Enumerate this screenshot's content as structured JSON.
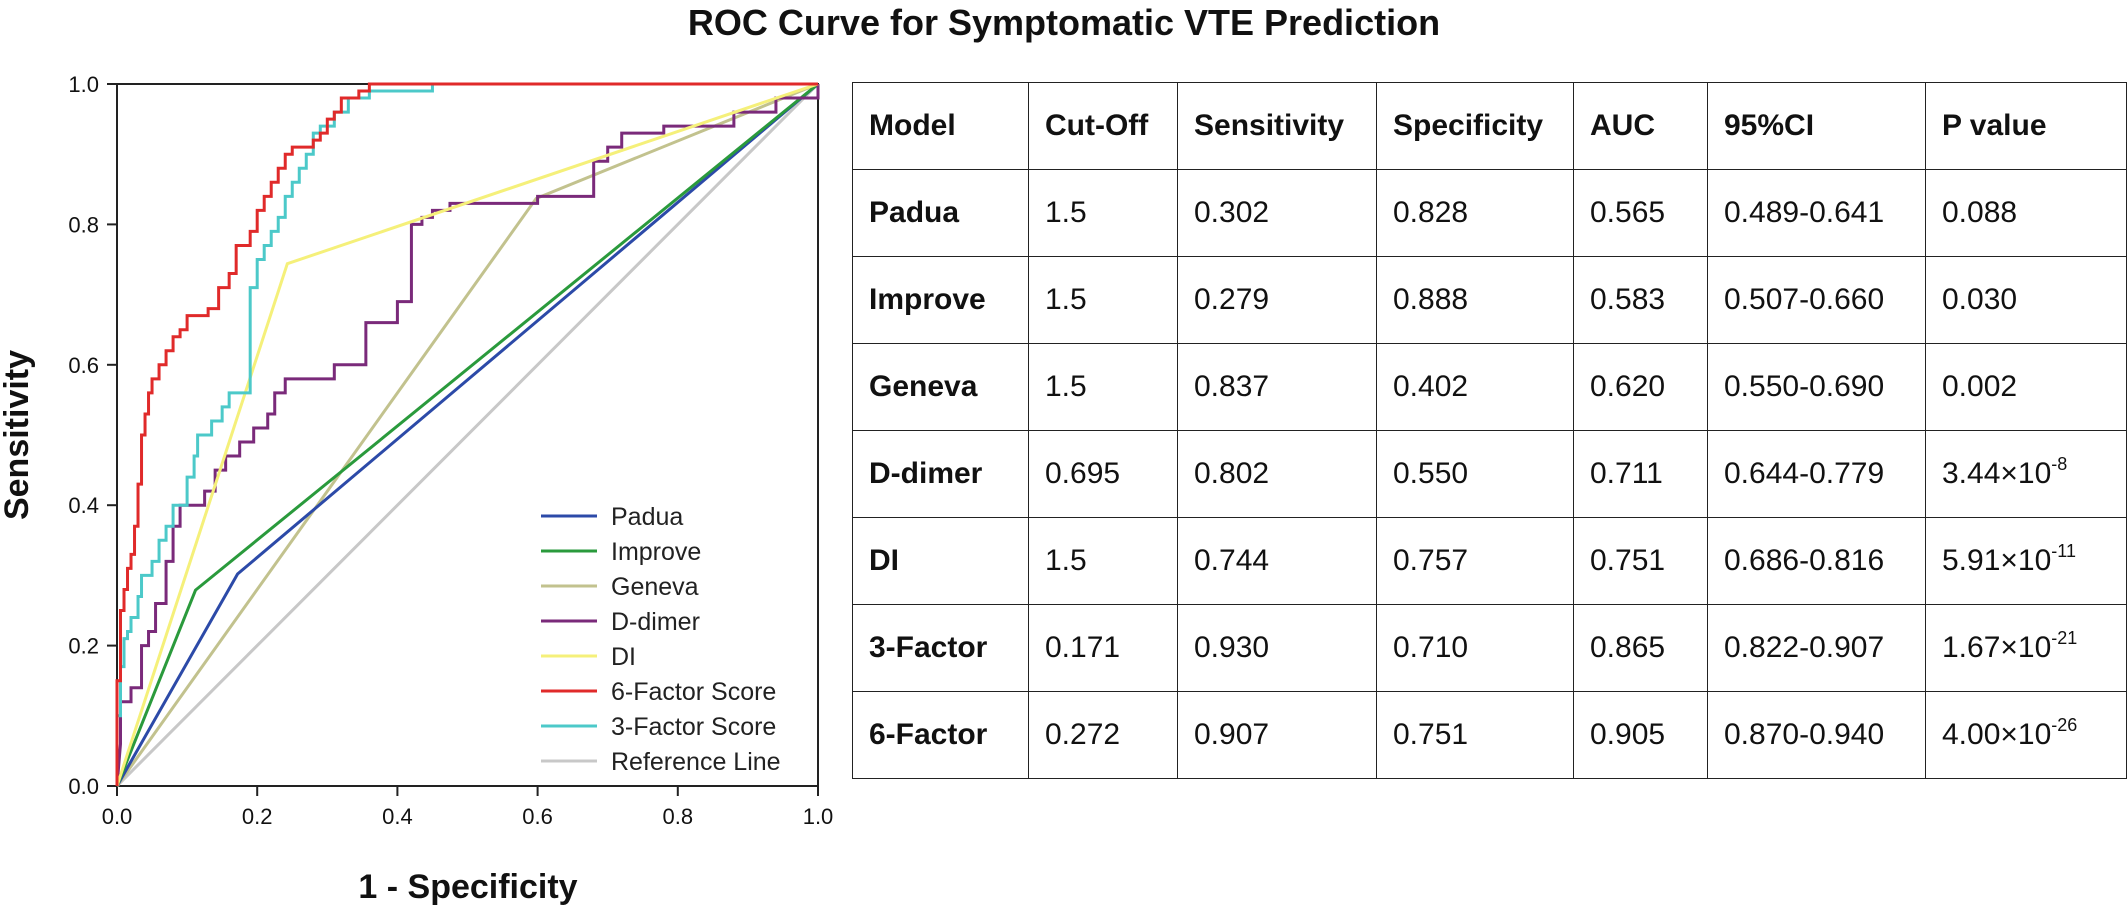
{
  "chart_data": [
    {
      "type": "line",
      "title": "ROC Curve for Symptomatic VTE Prediction",
      "xlabel": "1 - Specificity",
      "ylabel": "Sensitivity",
      "xlim": [
        0,
        1
      ],
      "ylim": [
        0,
        1
      ],
      "xticks": [
        "0.0",
        "0.2",
        "0.4",
        "0.6",
        "0.8",
        "1.0"
      ],
      "yticks": [
        "0.0",
        "0.2",
        "0.4",
        "0.6",
        "0.8",
        "1.0"
      ],
      "grid": false,
      "legend_position": "bottom-right",
      "series": [
        {
          "name": "Padua",
          "color": "#2c4aa8",
          "points": [
            [
              0,
              0
            ],
            [
              0.172,
              0.302
            ],
            [
              1,
              1
            ]
          ]
        },
        {
          "name": "Improve",
          "color": "#2a9a3c",
          "points": [
            [
              0,
              0
            ],
            [
              0.112,
              0.279
            ],
            [
              1,
              1
            ]
          ]
        },
        {
          "name": "Geneva",
          "color": "#c2c28e",
          "points": [
            [
              0,
              0
            ],
            [
              0.598,
              0.837
            ],
            [
              1,
              1
            ]
          ]
        },
        {
          "name": "D-dimer",
          "color": "#7a2a7a",
          "points": [
            [
              0,
              0
            ],
            [
              0.005,
              0.06
            ],
            [
              0.005,
              0.12
            ],
            [
              0.02,
              0.12
            ],
            [
              0.02,
              0.14
            ],
            [
              0.035,
              0.14
            ],
            [
              0.035,
              0.2
            ],
            [
              0.045,
              0.2
            ],
            [
              0.045,
              0.22
            ],
            [
              0.055,
              0.22
            ],
            [
              0.055,
              0.26
            ],
            [
              0.07,
              0.26
            ],
            [
              0.07,
              0.32
            ],
            [
              0.08,
              0.32
            ],
            [
              0.08,
              0.37
            ],
            [
              0.09,
              0.37
            ],
            [
              0.09,
              0.4
            ],
            [
              0.125,
              0.4
            ],
            [
              0.125,
              0.42
            ],
            [
              0.14,
              0.42
            ],
            [
              0.14,
              0.45
            ],
            [
              0.155,
              0.45
            ],
            [
              0.155,
              0.47
            ],
            [
              0.175,
              0.47
            ],
            [
              0.175,
              0.49
            ],
            [
              0.195,
              0.49
            ],
            [
              0.195,
              0.51
            ],
            [
              0.215,
              0.51
            ],
            [
              0.215,
              0.53
            ],
            [
              0.225,
              0.53
            ],
            [
              0.225,
              0.56
            ],
            [
              0.24,
              0.56
            ],
            [
              0.24,
              0.58
            ],
            [
              0.31,
              0.58
            ],
            [
              0.31,
              0.6
            ],
            [
              0.355,
              0.6
            ],
            [
              0.355,
              0.66
            ],
            [
              0.4,
              0.66
            ],
            [
              0.4,
              0.69
            ],
            [
              0.42,
              0.69
            ],
            [
              0.42,
              0.8
            ],
            [
              0.435,
              0.8
            ],
            [
              0.435,
              0.81
            ],
            [
              0.45,
              0.81
            ],
            [
              0.45,
              0.82
            ],
            [
              0.475,
              0.82
            ],
            [
              0.475,
              0.83
            ],
            [
              0.6,
              0.83
            ],
            [
              0.6,
              0.84
            ],
            [
              0.68,
              0.84
            ],
            [
              0.68,
              0.86
            ],
            [
              0.68,
              0.89
            ],
            [
              0.7,
              0.89
            ],
            [
              0.7,
              0.91
            ],
            [
              0.72,
              0.91
            ],
            [
              0.72,
              0.93
            ],
            [
              0.78,
              0.93
            ],
            [
              0.78,
              0.94
            ],
            [
              0.88,
              0.94
            ],
            [
              0.88,
              0.96
            ],
            [
              0.94,
              0.96
            ],
            [
              0.94,
              0.98
            ],
            [
              1,
              0.98
            ],
            [
              1,
              1
            ]
          ]
        },
        {
          "name": "DI",
          "color": "#f5f07a",
          "points": [
            [
              0,
              0
            ],
            [
              0.243,
              0.744
            ],
            [
              1,
              1
            ]
          ]
        },
        {
          "name": "6-Factor Score",
          "color": "#e02a2a",
          "points": [
            [
              0,
              0
            ],
            [
              0,
              0.15
            ],
            [
              0.005,
              0.15
            ],
            [
              0.005,
              0.25
            ],
            [
              0.01,
              0.25
            ],
            [
              0.01,
              0.28
            ],
            [
              0.015,
              0.28
            ],
            [
              0.015,
              0.31
            ],
            [
              0.02,
              0.31
            ],
            [
              0.02,
              0.33
            ],
            [
              0.025,
              0.33
            ],
            [
              0.025,
              0.37
            ],
            [
              0.03,
              0.37
            ],
            [
              0.03,
              0.43
            ],
            [
              0.035,
              0.43
            ],
            [
              0.035,
              0.5
            ],
            [
              0.04,
              0.5
            ],
            [
              0.04,
              0.53
            ],
            [
              0.045,
              0.53
            ],
            [
              0.045,
              0.56
            ],
            [
              0.05,
              0.56
            ],
            [
              0.05,
              0.58
            ],
            [
              0.06,
              0.58
            ],
            [
              0.06,
              0.6
            ],
            [
              0.07,
              0.6
            ],
            [
              0.07,
              0.62
            ],
            [
              0.08,
              0.62
            ],
            [
              0.08,
              0.64
            ],
            [
              0.09,
              0.64
            ],
            [
              0.09,
              0.65
            ],
            [
              0.1,
              0.65
            ],
            [
              0.1,
              0.67
            ],
            [
              0.13,
              0.67
            ],
            [
              0.13,
              0.68
            ],
            [
              0.145,
              0.68
            ],
            [
              0.145,
              0.71
            ],
            [
              0.16,
              0.71
            ],
            [
              0.16,
              0.73
            ],
            [
              0.17,
              0.73
            ],
            [
              0.17,
              0.77
            ],
            [
              0.19,
              0.77
            ],
            [
              0.19,
              0.79
            ],
            [
              0.2,
              0.79
            ],
            [
              0.2,
              0.82
            ],
            [
              0.21,
              0.82
            ],
            [
              0.21,
              0.84
            ],
            [
              0.22,
              0.84
            ],
            [
              0.22,
              0.86
            ],
            [
              0.23,
              0.86
            ],
            [
              0.23,
              0.88
            ],
            [
              0.24,
              0.88
            ],
            [
              0.24,
              0.9
            ],
            [
              0.25,
              0.9
            ],
            [
              0.25,
              0.91
            ],
            [
              0.28,
              0.91
            ],
            [
              0.28,
              0.92
            ],
            [
              0.29,
              0.92
            ],
            [
              0.29,
              0.93
            ],
            [
              0.3,
              0.93
            ],
            [
              0.3,
              0.95
            ],
            [
              0.31,
              0.95
            ],
            [
              0.31,
              0.96
            ],
            [
              0.32,
              0.96
            ],
            [
              0.32,
              0.98
            ],
            [
              0.345,
              0.98
            ],
            [
              0.345,
              0.99
            ],
            [
              0.36,
              0.99
            ],
            [
              0.36,
              1
            ],
            [
              1,
              1
            ]
          ]
        },
        {
          "name": "3-Factor Score",
          "color": "#4cc9c9",
          "points": [
            [
              0,
              0
            ],
            [
              0,
              0.1
            ],
            [
              0.005,
              0.1
            ],
            [
              0.005,
              0.17
            ],
            [
              0.01,
              0.17
            ],
            [
              0.01,
              0.21
            ],
            [
              0.015,
              0.21
            ],
            [
              0.015,
              0.22
            ],
            [
              0.02,
              0.22
            ],
            [
              0.02,
              0.24
            ],
            [
              0.03,
              0.24
            ],
            [
              0.03,
              0.27
            ],
            [
              0.035,
              0.27
            ],
            [
              0.035,
              0.3
            ],
            [
              0.05,
              0.3
            ],
            [
              0.05,
              0.32
            ],
            [
              0.06,
              0.32
            ],
            [
              0.06,
              0.35
            ],
            [
              0.07,
              0.35
            ],
            [
              0.07,
              0.37
            ],
            [
              0.08,
              0.37
            ],
            [
              0.08,
              0.4
            ],
            [
              0.1,
              0.4
            ],
            [
              0.1,
              0.44
            ],
            [
              0.11,
              0.44
            ],
            [
              0.11,
              0.47
            ],
            [
              0.115,
              0.47
            ],
            [
              0.115,
              0.5
            ],
            [
              0.135,
              0.5
            ],
            [
              0.135,
              0.52
            ],
            [
              0.15,
              0.52
            ],
            [
              0.15,
              0.54
            ],
            [
              0.16,
              0.54
            ],
            [
              0.16,
              0.56
            ],
            [
              0.19,
              0.56
            ],
            [
              0.19,
              0.71
            ],
            [
              0.2,
              0.71
            ],
            [
              0.2,
              0.75
            ],
            [
              0.21,
              0.75
            ],
            [
              0.21,
              0.77
            ],
            [
              0.22,
              0.77
            ],
            [
              0.22,
              0.79
            ],
            [
              0.23,
              0.79
            ],
            [
              0.23,
              0.81
            ],
            [
              0.24,
              0.81
            ],
            [
              0.24,
              0.84
            ],
            [
              0.25,
              0.84
            ],
            [
              0.25,
              0.86
            ],
            [
              0.26,
              0.86
            ],
            [
              0.26,
              0.88
            ],
            [
              0.27,
              0.88
            ],
            [
              0.27,
              0.9
            ],
            [
              0.28,
              0.9
            ],
            [
              0.28,
              0.93
            ],
            [
              0.29,
              0.93
            ],
            [
              0.29,
              0.94
            ],
            [
              0.31,
              0.94
            ],
            [
              0.31,
              0.96
            ],
            [
              0.33,
              0.96
            ],
            [
              0.33,
              0.98
            ],
            [
              0.36,
              0.98
            ],
            [
              0.36,
              0.99
            ],
            [
              0.45,
              0.99
            ],
            [
              0.45,
              1
            ],
            [
              1,
              1
            ]
          ]
        },
        {
          "name": "Reference Line",
          "color": "#c8c8c8",
          "points": [
            [
              0,
              0
            ],
            [
              1,
              1
            ]
          ]
        }
      ]
    },
    {
      "type": "table",
      "headers": [
        "Model",
        "Cut-Off",
        "Sensitivity",
        "Specificity",
        "AUC",
        "95%CI",
        "P value"
      ],
      "rows": [
        {
          "model": "Padua",
          "cutoff": "1.5",
          "sensitivity": "0.302",
          "specificity": "0.828",
          "auc": "0.565",
          "ci": "0.489-0.641",
          "p": "0.088",
          "p_exp": ""
        },
        {
          "model": "Improve",
          "cutoff": "1.5",
          "sensitivity": "0.279",
          "specificity": "0.888",
          "auc": "0.583",
          "ci": "0.507-0.660",
          "p": "0.030",
          "p_exp": ""
        },
        {
          "model": "Geneva",
          "cutoff": "1.5",
          "sensitivity": "0.837",
          "specificity": "0.402",
          "auc": "0.620",
          "ci": "0.550-0.690",
          "p": "0.002",
          "p_exp": ""
        },
        {
          "model": "D-dimer",
          "cutoff": "0.695",
          "sensitivity": "0.802",
          "specificity": "0.550",
          "auc": "0.711",
          "ci": "0.644-0.779",
          "p": "3.44×10",
          "p_exp": "-8"
        },
        {
          "model": "DI",
          "cutoff": "1.5",
          "sensitivity": "0.744",
          "specificity": "0.757",
          "auc": "0.751",
          "ci": "0.686-0.816",
          "p": "5.91×10",
          "p_exp": "-11"
        },
        {
          "model": "3-Factor",
          "cutoff": "0.171",
          "sensitivity": "0.930",
          "specificity": "0.710",
          "auc": "0.865",
          "ci": "0.822-0.907",
          "p": "1.67×10",
          "p_exp": "-21"
        },
        {
          "model": "6-Factor",
          "cutoff": "0.272",
          "sensitivity": "0.907",
          "specificity": "0.751",
          "auc": "0.905",
          "ci": "0.870-0.940",
          "p": "4.00×10",
          "p_exp": "-26"
        }
      ]
    }
  ]
}
